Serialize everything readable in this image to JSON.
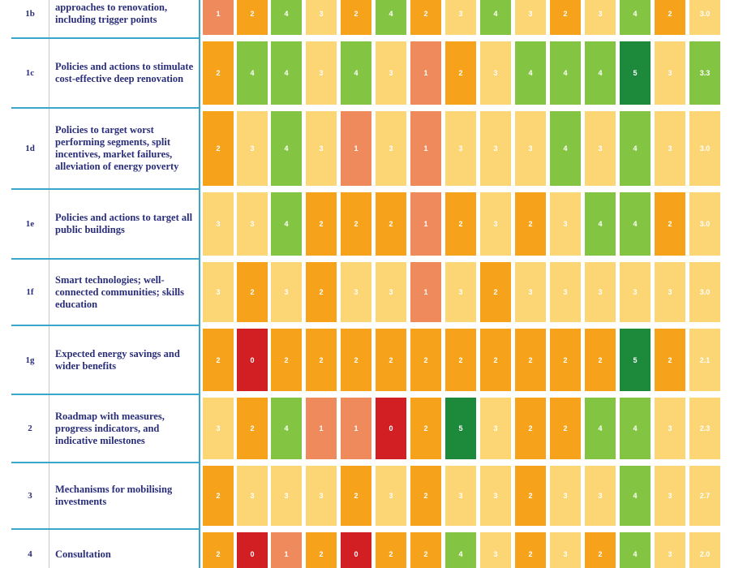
{
  "colors": {
    "1": "#d21f24",
    "2": "#ef8a5c",
    "3": "#f7a21b",
    "4": "#fcd574",
    "5": "#84c443",
    "6": "#1c8a3a"
  },
  "rows": [
    {
      "id": "1b",
      "label": "approaches to renovation, including trigger points",
      "levels": [
        2,
        3,
        5,
        4,
        3,
        5,
        3,
        4,
        5,
        4,
        3,
        4,
        5,
        3,
        4
      ],
      "scores": [
        "1",
        "2",
        "4",
        "3",
        "2",
        "4",
        "2",
        "3",
        "4",
        "3",
        "2",
        "3",
        "4",
        "2",
        "3.0"
      ]
    },
    {
      "id": "1c",
      "label": "Policies and actions to stimulate cost-effective deep renovation",
      "levels": [
        3,
        5,
        5,
        4,
        5,
        4,
        2,
        3,
        4,
        5,
        5,
        5,
        6,
        4,
        5
      ],
      "scores": [
        "2",
        "4",
        "4",
        "3",
        "4",
        "3",
        "1",
        "2",
        "3",
        "4",
        "4",
        "4",
        "5",
        "3",
        "3.3"
      ]
    },
    {
      "id": "1d",
      "label": "Policies to target worst performing segments, split incentives, market failures, alleviation of energy poverty",
      "levels": [
        3,
        4,
        5,
        4,
        2,
        4,
        2,
        4,
        4,
        4,
        5,
        4,
        5,
        4,
        4
      ],
      "scores": [
        "2",
        "3",
        "4",
        "3",
        "1",
        "3",
        "1",
        "3",
        "3",
        "3",
        "4",
        "3",
        "4",
        "3",
        "3.0"
      ]
    },
    {
      "id": "1e",
      "label": "Policies and actions to target all public buildings",
      "levels": [
        4,
        4,
        5,
        3,
        3,
        3,
        2,
        3,
        4,
        3,
        4,
        5,
        5,
        3,
        4
      ],
      "scores": [
        "3",
        "3",
        "4",
        "2",
        "2",
        "2",
        "1",
        "2",
        "3",
        "2",
        "3",
        "4",
        "4",
        "2",
        "3.0"
      ]
    },
    {
      "id": "1f",
      "label": "Smart technologies; well-connected communities; skills education",
      "levels": [
        4,
        3,
        4,
        3,
        4,
        4,
        2,
        4,
        3,
        4,
        4,
        4,
        4,
        4,
        4
      ],
      "scores": [
        "3",
        "2",
        "3",
        "2",
        "3",
        "3",
        "1",
        "3",
        "2",
        "3",
        "3",
        "3",
        "3",
        "3",
        "3.0"
      ]
    },
    {
      "id": "1g",
      "label": "Expected energy savings and wider benefits",
      "levels": [
        3,
        1,
        3,
        3,
        3,
        3,
        3,
        3,
        3,
        3,
        3,
        3,
        6,
        3,
        4
      ],
      "scores": [
        "2",
        "0",
        "2",
        "2",
        "2",
        "2",
        "2",
        "2",
        "2",
        "2",
        "2",
        "2",
        "5",
        "2",
        "2.1"
      ]
    },
    {
      "id": "2",
      "label": "Roadmap with measures, progress indicators, and indicative milestones",
      "levels": [
        4,
        3,
        5,
        2,
        2,
        1,
        3,
        6,
        4,
        3,
        3,
        5,
        5,
        4,
        4
      ],
      "scores": [
        "3",
        "2",
        "4",
        "1",
        "1",
        "0",
        "2",
        "5",
        "3",
        "2",
        "2",
        "4",
        "4",
        "3",
        "2.3"
      ]
    },
    {
      "id": "3",
      "label": "Mechanisms for mobilising investments",
      "levels": [
        3,
        4,
        4,
        4,
        3,
        4,
        3,
        4,
        4,
        3,
        4,
        4,
        5,
        4,
        4
      ],
      "scores": [
        "2",
        "3",
        "3",
        "3",
        "2",
        "3",
        "2",
        "3",
        "3",
        "2",
        "3",
        "3",
        "4",
        "3",
        "2.7"
      ]
    },
    {
      "id": "4",
      "label": "Consultation",
      "levels": [
        3,
        1,
        2,
        3,
        1,
        3,
        3,
        5,
        4,
        3,
        4,
        3,
        5,
        4,
        4
      ],
      "scores": [
        "2",
        "0",
        "1",
        "2",
        "0",
        "2",
        "2",
        "4",
        "3",
        "2",
        "3",
        "2",
        "4",
        "3",
        "2.0"
      ]
    }
  ]
}
